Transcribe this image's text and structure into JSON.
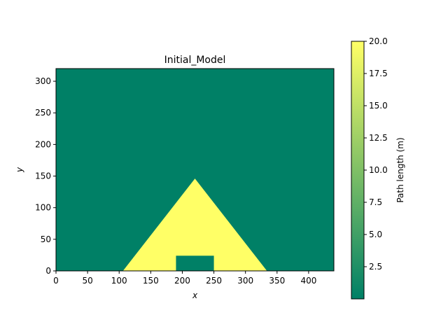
{
  "chart_data": {
    "type": "heatmap",
    "title": "Initial_Model",
    "xlabel": "x",
    "ylabel": "y",
    "xlim": [
      0,
      440
    ],
    "ylim": [
      0,
      320
    ],
    "x_ticks": [
      0,
      50,
      100,
      150,
      200,
      250,
      300,
      350,
      400
    ],
    "y_ticks": [
      0,
      50,
      100,
      150,
      200,
      250,
      300
    ],
    "background_value": 0.0,
    "regions": [
      {
        "name": "pyramid",
        "shape": "triangle",
        "value": 20.0,
        "vertices": [
          [
            106,
            0
          ],
          [
            220,
            146
          ],
          [
            334,
            0
          ]
        ]
      },
      {
        "name": "chamber",
        "shape": "rectangle",
        "value": 0.0,
        "x_range": [
          190,
          250
        ],
        "y_range": [
          0,
          24
        ]
      }
    ],
    "colorbar": {
      "label": "Path length (m)",
      "min": 0.0,
      "max": 20.0,
      "ticks": [
        "2.5",
        "5.0",
        "7.5",
        "10.0",
        "12.5",
        "15.0",
        "17.5",
        "20.0"
      ],
      "colormap": [
        "#008066",
        "#ffff66"
      ]
    }
  }
}
